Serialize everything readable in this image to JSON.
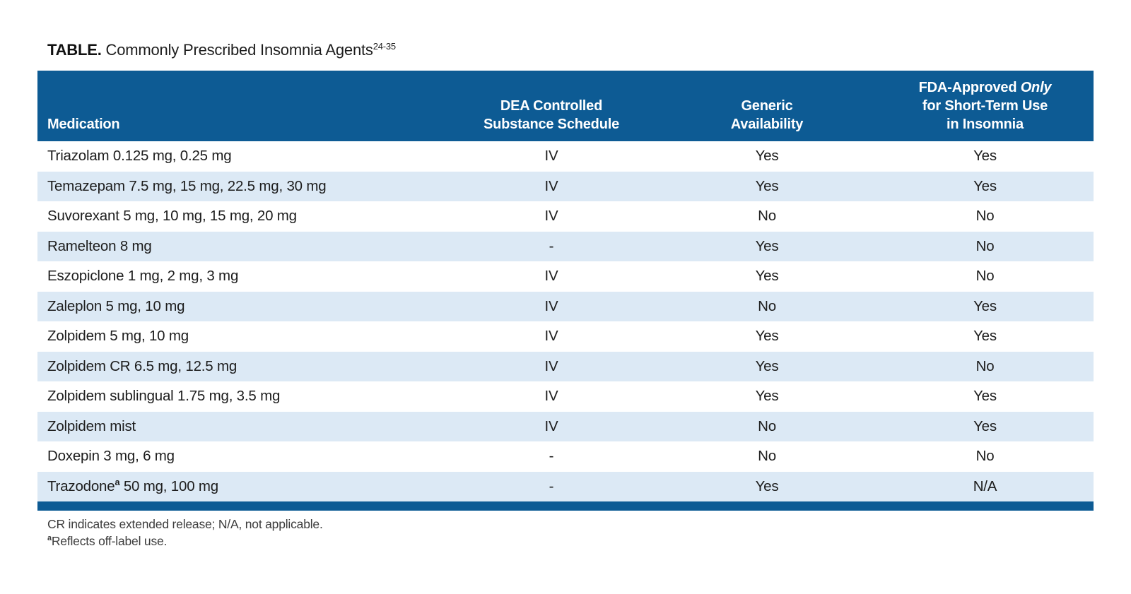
{
  "title": {
    "label": "TABLE.",
    "text": " Commonly Prescribed Insomnia Agents",
    "superscript": "24-35"
  },
  "colors": {
    "header_blue": "#0d5b94",
    "row_alt_blue": "#dce9f5",
    "body_text": "#1d1d1d"
  },
  "table": {
    "columns": [
      {
        "id": "medication",
        "lines": [
          "Medication"
        ],
        "align": "left"
      },
      {
        "id": "dea",
        "lines": [
          "DEA Controlled",
          "Substance Schedule"
        ],
        "align": "center"
      },
      {
        "id": "generic",
        "lines": [
          "Generic",
          "Availability"
        ],
        "align": "center"
      },
      {
        "id": "fda",
        "lines": [
          "FDA-Approved *Only*",
          "for Short-Term Use",
          "in Insomnia"
        ],
        "align": "center"
      }
    ],
    "rows": [
      {
        "medication": "Triazolam 0.125 mg, 0.25 mg",
        "dea": "IV",
        "generic": "Yes",
        "fda": "Yes"
      },
      {
        "medication": "Temazepam 7.5 mg, 15 mg, 22.5 mg, 30 mg",
        "dea": "IV",
        "generic": "Yes",
        "fda": "Yes"
      },
      {
        "medication": "Suvorexant 5 mg, 10 mg, 15 mg, 20 mg",
        "dea": "IV",
        "generic": "No",
        "fda": "No"
      },
      {
        "medication": "Ramelteon 8 mg",
        "dea": "-",
        "generic": "Yes",
        "fda": "No"
      },
      {
        "medication": "Eszopiclone 1 mg, 2 mg, 3 mg",
        "dea": "IV",
        "generic": "Yes",
        "fda": "No"
      },
      {
        "medication": "Zaleplon 5 mg, 10 mg",
        "dea": "IV",
        "generic": "No",
        "fda": "Yes"
      },
      {
        "medication": "Zolpidem 5 mg, 10 mg",
        "dea": "IV",
        "generic": "Yes",
        "fda": "Yes"
      },
      {
        "medication": "Zolpidem CR 6.5 mg, 12.5 mg",
        "dea": "IV",
        "generic": "Yes",
        "fda": "No"
      },
      {
        "medication": "Zolpidem sublingual 1.75 mg, 3.5 mg",
        "dea": "IV",
        "generic": "Yes",
        "fda": "Yes"
      },
      {
        "medication": "Zolpidem mist",
        "dea": "IV",
        "generic": "No",
        "fda": "Yes"
      },
      {
        "medication": "Doxepin 3 mg, 6 mg",
        "dea": "-",
        "generic": "No",
        "fda": "No"
      },
      {
        "medication": "Trazodone^{a} 50 mg, 100 mg",
        "dea": "-",
        "generic": "Yes",
        "fda": "N/A"
      }
    ]
  },
  "footnotes": [
    {
      "sup": "",
      "text": "CR indicates extended release; N/A, not applicable."
    },
    {
      "sup": "a",
      "text": "Reflects off-label use."
    }
  ]
}
